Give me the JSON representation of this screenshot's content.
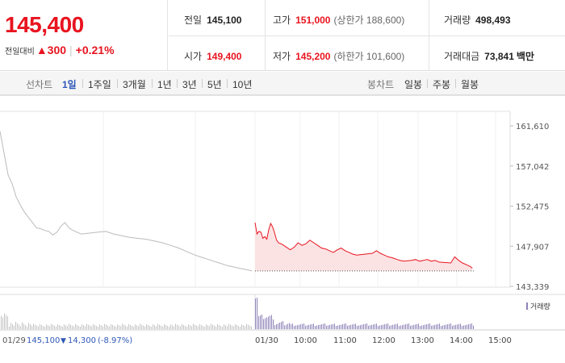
{
  "quote": {
    "price": "145,400",
    "change_label": "전일대비",
    "change_arrow": "▲",
    "change_amount": "300",
    "change_percent": "+0.21%",
    "prev_close_label": "전일",
    "prev_close": "145,100",
    "high_label": "고가",
    "high": "151,000",
    "upper_limit": "(상한가 188,600)",
    "volume_label": "거래량",
    "volume": "498,493",
    "open_label": "시가",
    "open": "149,400",
    "low_label": "저가",
    "low": "145,200",
    "lower_limit": "(하한가 101,600)",
    "trade_value_label": "거래대금",
    "trade_value": "73,841",
    "trade_value_unit": "백만"
  },
  "tabs": {
    "line_label": "선차트",
    "line": [
      "1일",
      "1주일",
      "3개월",
      "1년",
      "3년",
      "5년",
      "10년"
    ],
    "line_active": 0,
    "candle_label": "봉차트",
    "candle": [
      "일봉",
      "주봉",
      "월봉"
    ]
  },
  "chart_data": {
    "type": "line",
    "y_ticks": [
      "161,610",
      "157,042",
      "152,475",
      "147,907",
      "143,339"
    ],
    "ylim": [
      143339,
      161610
    ],
    "x_labels": [
      "01/30",
      "10:00",
      "11:00",
      "12:00",
      "13:00",
      "14:00",
      "15:00"
    ],
    "prev_day_info": {
      "date": "01/29",
      "close": "145,100",
      "arrow": "▼",
      "change": "14,300",
      "percent": "(-8.97%)"
    },
    "volume_legend": "거래량",
    "colors": {
      "today": "#e8141f",
      "prev": "#bbbbbb",
      "fill": "#fbe3e4",
      "volume_prev": "#c4c4c4",
      "volume_today": "#8e82b8"
    },
    "prev_series": [
      [
        0,
        161000
      ],
      [
        0.01,
        158500
      ],
      [
        0.02,
        156000
      ],
      [
        0.03,
        155000
      ],
      [
        0.04,
        153500
      ],
      [
        0.05,
        152600
      ],
      [
        0.06,
        151800
      ],
      [
        0.07,
        151200
      ],
      [
        0.08,
        150600
      ],
      [
        0.09,
        150000
      ],
      [
        0.1,
        149900
      ],
      [
        0.11,
        149700
      ],
      [
        0.12,
        149600
      ],
      [
        0.13,
        149200
      ],
      [
        0.14,
        149500
      ],
      [
        0.15,
        150200
      ],
      [
        0.16,
        150600
      ],
      [
        0.17,
        150000
      ],
      [
        0.18,
        149700
      ],
      [
        0.19,
        149500
      ],
      [
        0.2,
        149300
      ],
      [
        0.22,
        149400
      ],
      [
        0.24,
        149500
      ],
      [
        0.26,
        149600
      ],
      [
        0.28,
        149300
      ],
      [
        0.3,
        149100
      ],
      [
        0.32,
        148900
      ],
      [
        0.34,
        148800
      ],
      [
        0.36,
        148700
      ],
      [
        0.38,
        148500
      ],
      [
        0.4,
        148300
      ],
      [
        0.42,
        148000
      ],
      [
        0.44,
        147700
      ],
      [
        0.46,
        147300
      ],
      [
        0.48,
        146900
      ],
      [
        0.5,
        146600
      ],
      [
        0.52,
        146300
      ],
      [
        0.54,
        146000
      ],
      [
        0.56,
        145700
      ],
      [
        0.58,
        145500
      ],
      [
        0.6,
        145300
      ],
      [
        0.62,
        145100
      ]
    ],
    "today_series": [
      [
        9.0,
        150600
      ],
      [
        9.05,
        149300
      ],
      [
        9.1,
        149600
      ],
      [
        9.15,
        149500
      ],
      [
        9.2,
        148800
      ],
      [
        9.25,
        149000
      ],
      [
        9.3,
        148700
      ],
      [
        9.35,
        149800
      ],
      [
        9.4,
        150500
      ],
      [
        9.45,
        150100
      ],
      [
        9.5,
        149400
      ],
      [
        9.55,
        148600
      ],
      [
        9.6,
        148300
      ],
      [
        9.7,
        148100
      ],
      [
        9.8,
        147800
      ],
      [
        9.9,
        147500
      ],
      [
        10.0,
        147800
      ],
      [
        10.1,
        148300
      ],
      [
        10.2,
        148000
      ],
      [
        10.3,
        148200
      ],
      [
        10.4,
        148600
      ],
      [
        10.5,
        148300
      ],
      [
        10.6,
        148000
      ],
      [
        10.7,
        147700
      ],
      [
        10.8,
        147600
      ],
      [
        10.9,
        147400
      ],
      [
        11.0,
        147200
      ],
      [
        11.1,
        147500
      ],
      [
        11.2,
        147700
      ],
      [
        11.3,
        147400
      ],
      [
        11.4,
        147200
      ],
      [
        11.5,
        147000
      ],
      [
        11.6,
        146900
      ],
      [
        11.8,
        147000
      ],
      [
        12.0,
        147100
      ],
      [
        12.1,
        147400
      ],
      [
        12.2,
        147100
      ],
      [
        12.3,
        146900
      ],
      [
        12.4,
        146700
      ],
      [
        12.5,
        146600
      ],
      [
        12.7,
        146300
      ],
      [
        12.8,
        146200
      ],
      [
        13.0,
        146300
      ],
      [
        13.1,
        146400
      ],
      [
        13.2,
        146200
      ],
      [
        13.3,
        146300
      ],
      [
        13.4,
        146400
      ],
      [
        13.5,
        146200
      ],
      [
        13.6,
        146300
      ],
      [
        13.7,
        146100
      ],
      [
        14.0,
        146000
      ],
      [
        14.1,
        146700
      ],
      [
        14.2,
        146300
      ],
      [
        14.3,
        146000
      ],
      [
        14.4,
        145800
      ],
      [
        14.5,
        145600
      ],
      [
        14.55,
        145400
      ]
    ],
    "baseline": 145100
  }
}
